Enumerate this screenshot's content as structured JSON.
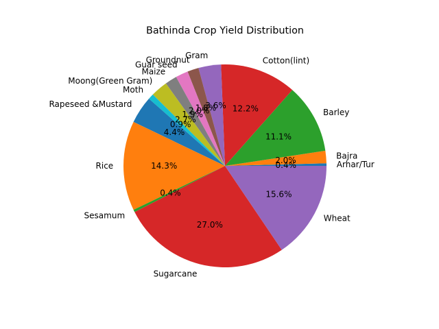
{
  "chart_data": {
    "type": "pie",
    "title": "Bathinda Crop Yield Distribution",
    "start_angle_deg": 0,
    "direction": "counterclockwise",
    "legend": "none",
    "slices": [
      {
        "label": "Arhar/Tur",
        "value": 0.4,
        "pct_label": "0.4%",
        "color": "#1f77b4"
      },
      {
        "label": "Bajra",
        "value": 2.0,
        "pct_label": "2.0%",
        "color": "#ff7f0e"
      },
      {
        "label": "Barley",
        "value": 11.1,
        "pct_label": "11.1%",
        "color": "#2ca02c"
      },
      {
        "label": "Cotton(lint)",
        "value": 12.2,
        "pct_label": "12.2%",
        "color": "#d62728"
      },
      {
        "label": "Gram",
        "value": 3.6,
        "pct_label": "3.6%",
        "color": "#9467bd"
      },
      {
        "label": "Groundnut",
        "value": 1.8,
        "pct_label": "1.8%",
        "color": "#8c564b"
      },
      {
        "label": "Guar seed",
        "value": 2.0,
        "pct_label": "2.0%",
        "color": "#e377c2"
      },
      {
        "label": "Maize",
        "value": 1.9,
        "pct_label": "1.9%",
        "color": "#7f7f7f"
      },
      {
        "label": "Moong(Green Gram)",
        "value": 2.7,
        "pct_label": "2.7%",
        "color": "#bcbd22"
      },
      {
        "label": "Moth",
        "value": 0.9,
        "pct_label": "0.9%",
        "color": "#17becf"
      },
      {
        "label": "Rapeseed &Mustard",
        "value": 4.4,
        "pct_label": "4.4%",
        "color": "#1f77b4"
      },
      {
        "label": "Rice",
        "value": 14.3,
        "pct_label": "14.3%",
        "color": "#ff7f0e"
      },
      {
        "label": "Sesamum",
        "value": 0.4,
        "pct_label": "0.4%",
        "color": "#2ca02c"
      },
      {
        "label": "Sugarcane",
        "value": 27.0,
        "pct_label": "27.0%",
        "color": "#d62728"
      },
      {
        "label": "Wheat",
        "value": 15.6,
        "pct_label": "15.6%",
        "color": "#9467bd"
      }
    ]
  }
}
